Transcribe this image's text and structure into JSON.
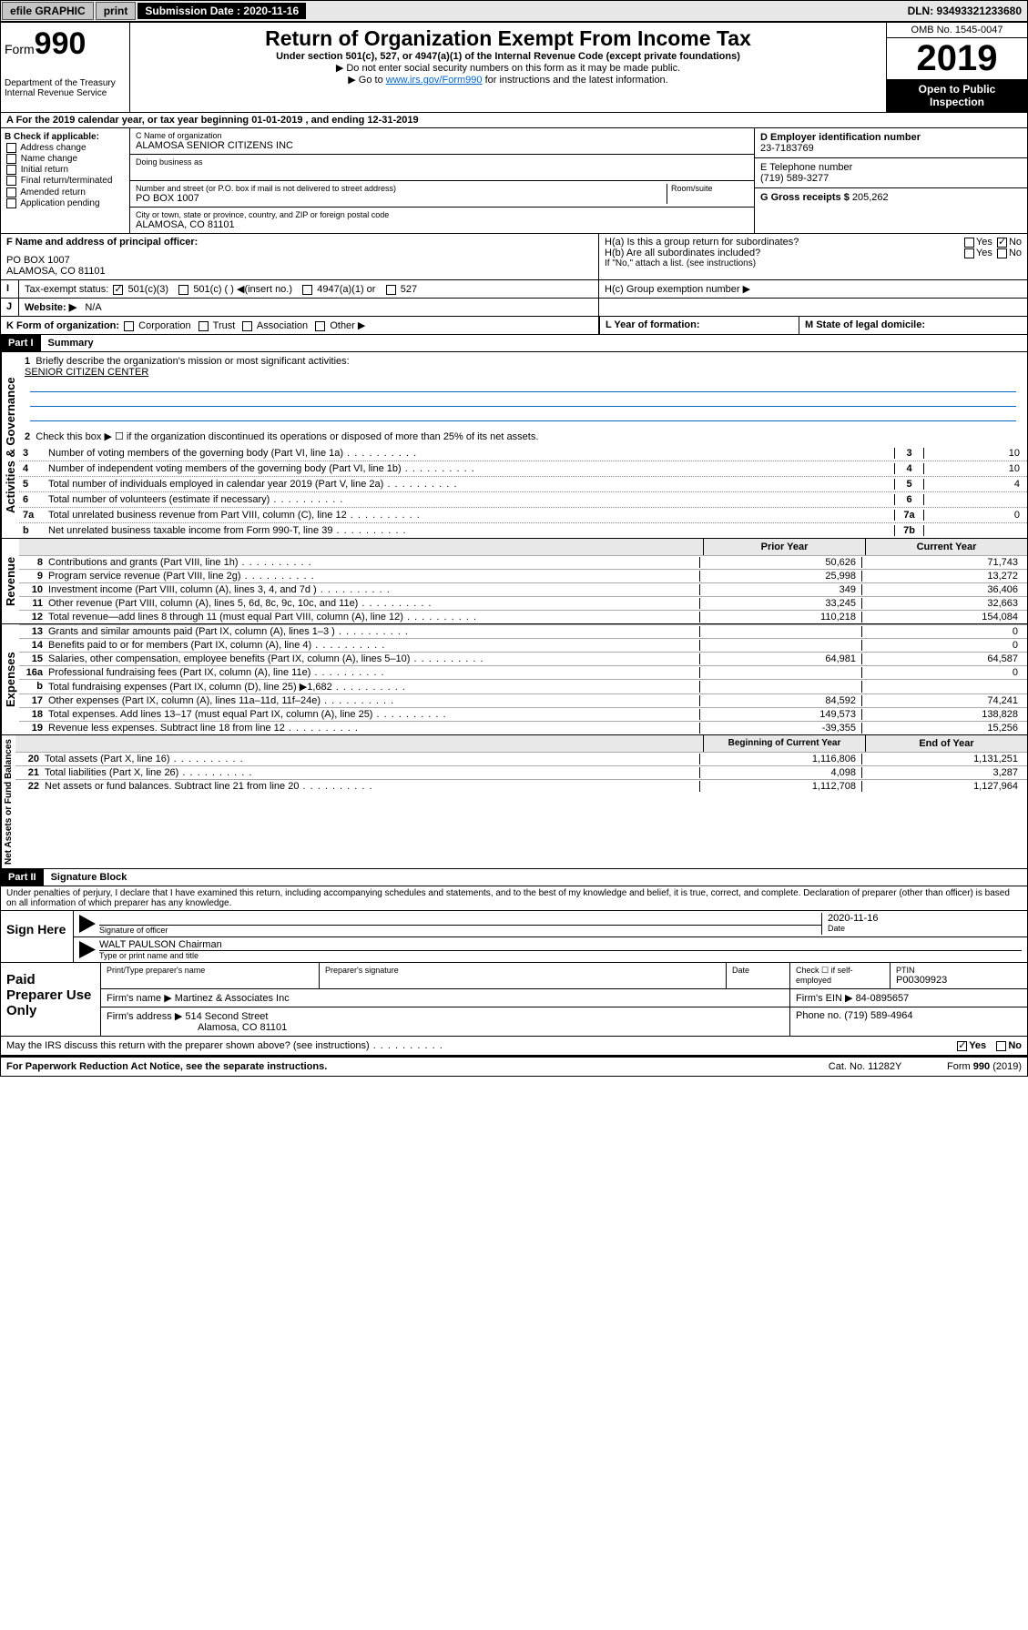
{
  "topbar": {
    "efile": "efile GRAPHIC",
    "print": "print",
    "submission_label": "Submission Date :",
    "submission_date": "2020-11-16",
    "dln": "DLN: 93493321233680"
  },
  "header": {
    "form_label": "Form",
    "form_number": "990",
    "dept": "Department of the Treasury",
    "irs": "Internal Revenue Service",
    "title": "Return of Organization Exempt From Income Tax",
    "sub1": "Under section 501(c), 527, or 4947(a)(1) of the Internal Revenue Code (except private foundations)",
    "sub2": "▶ Do not enter social security numbers on this form as it may be made public.",
    "sub3_pre": "▶ Go to ",
    "sub3_link": "www.irs.gov/Form990",
    "sub3_post": " for instructions and the latest information.",
    "omb": "OMB No. 1545-0047",
    "year": "2019",
    "open": "Open to Public Inspection"
  },
  "line_a": "A For the 2019 calendar year, or tax year beginning 01-01-2019    , and ending 12-31-2019",
  "section_b": {
    "check_label": "B Check if applicable:",
    "opts": [
      "Address change",
      "Name change",
      "Initial return",
      "Final return/terminated",
      "Amended return",
      "Application pending"
    ],
    "c_label": "C Name of organization",
    "c_name": "ALAMOSA SENIOR CITIZENS INC",
    "dba": "Doing business as",
    "addr_label": "Number and street (or P.O. box if mail is not delivered to street address)",
    "room": "Room/suite",
    "addr": "PO BOX 1007",
    "city_label": "City or town, state or province, country, and ZIP or foreign postal code",
    "city": "ALAMOSA, CO  81101",
    "d_label": "D Employer identification number",
    "d_val": "23-7183769",
    "e_label": "E Telephone number",
    "e_val": "(719) 589-3277",
    "g_label": "G Gross receipts $",
    "g_val": "205,262"
  },
  "row_f": {
    "f_label": "F  Name and address of principal officer:",
    "f_addr1": "PO BOX 1007",
    "f_addr2": "ALAMOSA, CO  81101",
    "ha": "H(a)  Is this a group return for subordinates?",
    "hb": "H(b)  Are all subordinates included?",
    "hb_note": "If \"No,\" attach a list. (see instructions)",
    "yes": "Yes",
    "no": "No"
  },
  "row_i": {
    "label": "Tax-exempt status:",
    "opts": [
      "501(c)(3)",
      "501(c) (  ) ◀(insert no.)",
      "4947(a)(1) or",
      "527"
    ],
    "hc": "H(c)  Group exemption number ▶"
  },
  "row_j": {
    "label": "J",
    "website": "Website: ▶",
    "val": "N/A"
  },
  "row_k": {
    "k": "K Form of organization:",
    "opts": [
      "Corporation",
      "Trust",
      "Association",
      "Other ▶"
    ],
    "l": "L Year of formation:",
    "m": "M State of legal domicile:"
  },
  "part1": {
    "label": "Part I",
    "title": "Summary",
    "side": "Activities & Governance",
    "l1": "Briefly describe the organization's mission or most significant activities:",
    "l1v": "SENIOR CITIZEN CENTER",
    "l2": "Check this box ▶ ☐  if the organization discontinued its operations or disposed of more than 25% of its net assets.",
    "rows": [
      {
        "n": "3",
        "d": "Number of voting members of the governing body (Part VI, line 1a)",
        "b": "3",
        "v": "10"
      },
      {
        "n": "4",
        "d": "Number of independent voting members of the governing body (Part VI, line 1b)",
        "b": "4",
        "v": "10"
      },
      {
        "n": "5",
        "d": "Total number of individuals employed in calendar year 2019 (Part V, line 2a)",
        "b": "5",
        "v": "4"
      },
      {
        "n": "6",
        "d": "Total number of volunteers (estimate if necessary)",
        "b": "6",
        "v": ""
      },
      {
        "n": "7a",
        "d": "Total unrelated business revenue from Part VIII, column (C), line 12",
        "b": "7a",
        "v": "0"
      },
      {
        "n": "b",
        "d": "Net unrelated business taxable income from Form 990-T, line 39",
        "b": "7b",
        "v": ""
      }
    ]
  },
  "revenue": {
    "side": "Revenue",
    "h1": "Prior Year",
    "h2": "Current Year",
    "rows": [
      {
        "n": "8",
        "d": "Contributions and grants (Part VIII, line 1h)",
        "c1": "50,626",
        "c2": "71,743"
      },
      {
        "n": "9",
        "d": "Program service revenue (Part VIII, line 2g)",
        "c1": "25,998",
        "c2": "13,272"
      },
      {
        "n": "10",
        "d": "Investment income (Part VIII, column (A), lines 3, 4, and 7d )",
        "c1": "349",
        "c2": "36,406"
      },
      {
        "n": "11",
        "d": "Other revenue (Part VIII, column (A), lines 5, 6d, 8c, 9c, 10c, and 11e)",
        "c1": "33,245",
        "c2": "32,663"
      },
      {
        "n": "12",
        "d": "Total revenue—add lines 8 through 11 (must equal Part VIII, column (A), line 12)",
        "c1": "110,218",
        "c2": "154,084"
      }
    ]
  },
  "expenses": {
    "side": "Expenses",
    "rows": [
      {
        "n": "13",
        "d": "Grants and similar amounts paid (Part IX, column (A), lines 1–3 )",
        "c1": "",
        "c2": "0"
      },
      {
        "n": "14",
        "d": "Benefits paid to or for members (Part IX, column (A), line 4)",
        "c1": "",
        "c2": "0"
      },
      {
        "n": "15",
        "d": "Salaries, other compensation, employee benefits (Part IX, column (A), lines 5–10)",
        "c1": "64,981",
        "c2": "64,587"
      },
      {
        "n": "16a",
        "d": "Professional fundraising fees (Part IX, column (A), line 11e)",
        "c1": "",
        "c2": "0"
      },
      {
        "n": "b",
        "d": "Total fundraising expenses (Part IX, column (D), line 25) ▶1,682",
        "c1": "",
        "c2": ""
      },
      {
        "n": "17",
        "d": "Other expenses (Part IX, column (A), lines 11a–11d, 11f–24e)",
        "c1": "84,592",
        "c2": "74,241"
      },
      {
        "n": "18",
        "d": "Total expenses. Add lines 13–17 (must equal Part IX, column (A), line 25)",
        "c1": "149,573",
        "c2": "138,828"
      },
      {
        "n": "19",
        "d": "Revenue less expenses. Subtract line 18 from line 12",
        "c1": "-39,355",
        "c2": "15,256"
      }
    ]
  },
  "netassets": {
    "side": "Net Assets or Fund Balances",
    "h1": "Beginning of Current Year",
    "h2": "End of Year",
    "rows": [
      {
        "n": "20",
        "d": "Total assets (Part X, line 16)",
        "c1": "1,116,806",
        "c2": "1,131,251"
      },
      {
        "n": "21",
        "d": "Total liabilities (Part X, line 26)",
        "c1": "4,098",
        "c2": "3,287"
      },
      {
        "n": "22",
        "d": "Net assets or fund balances. Subtract line 21 from line 20",
        "c1": "1,112,708",
        "c2": "1,127,964"
      }
    ]
  },
  "part2": {
    "label": "Part II",
    "title": "Signature Block",
    "decl": "Under penalties of perjury, I declare that I have examined this return, including accompanying schedules and statements, and to the best of my knowledge and belief, it is true, correct, and complete. Declaration of preparer (other than officer) is based on all information of which preparer has any knowledge."
  },
  "sign": {
    "left": "Sign Here",
    "sig_officer": "Signature of officer",
    "date_label": "Date",
    "date": "2020-11-16",
    "name": "WALT PAULSON Chairman",
    "name_label": "Type or print name and title"
  },
  "preparer": {
    "left": "Paid Preparer Use Only",
    "h1": "Print/Type preparer's name",
    "h2": "Preparer's signature",
    "h3": "Date",
    "h4_a": "Check ☐ if self-employed",
    "h5": "PTIN",
    "ptin": "P00309923",
    "firm_name_l": "Firm's name    ▶",
    "firm_name": "Martinez & Associates Inc",
    "firm_ein_l": "Firm's EIN ▶",
    "firm_ein": "84-0895657",
    "firm_addr_l": "Firm's address ▶",
    "firm_addr1": "514 Second Street",
    "firm_addr2": "Alamosa, CO  81101",
    "phone_l": "Phone no.",
    "phone": "(719) 589-4964"
  },
  "footer": {
    "q": "May the IRS discuss this return with the preparer shown above? (see instructions)",
    "yes": "Yes",
    "no": "No",
    "pra": "For Paperwork Reduction Act Notice, see the separate instructions.",
    "cat": "Cat. No. 11282Y",
    "form": "Form 990 (2019)"
  }
}
